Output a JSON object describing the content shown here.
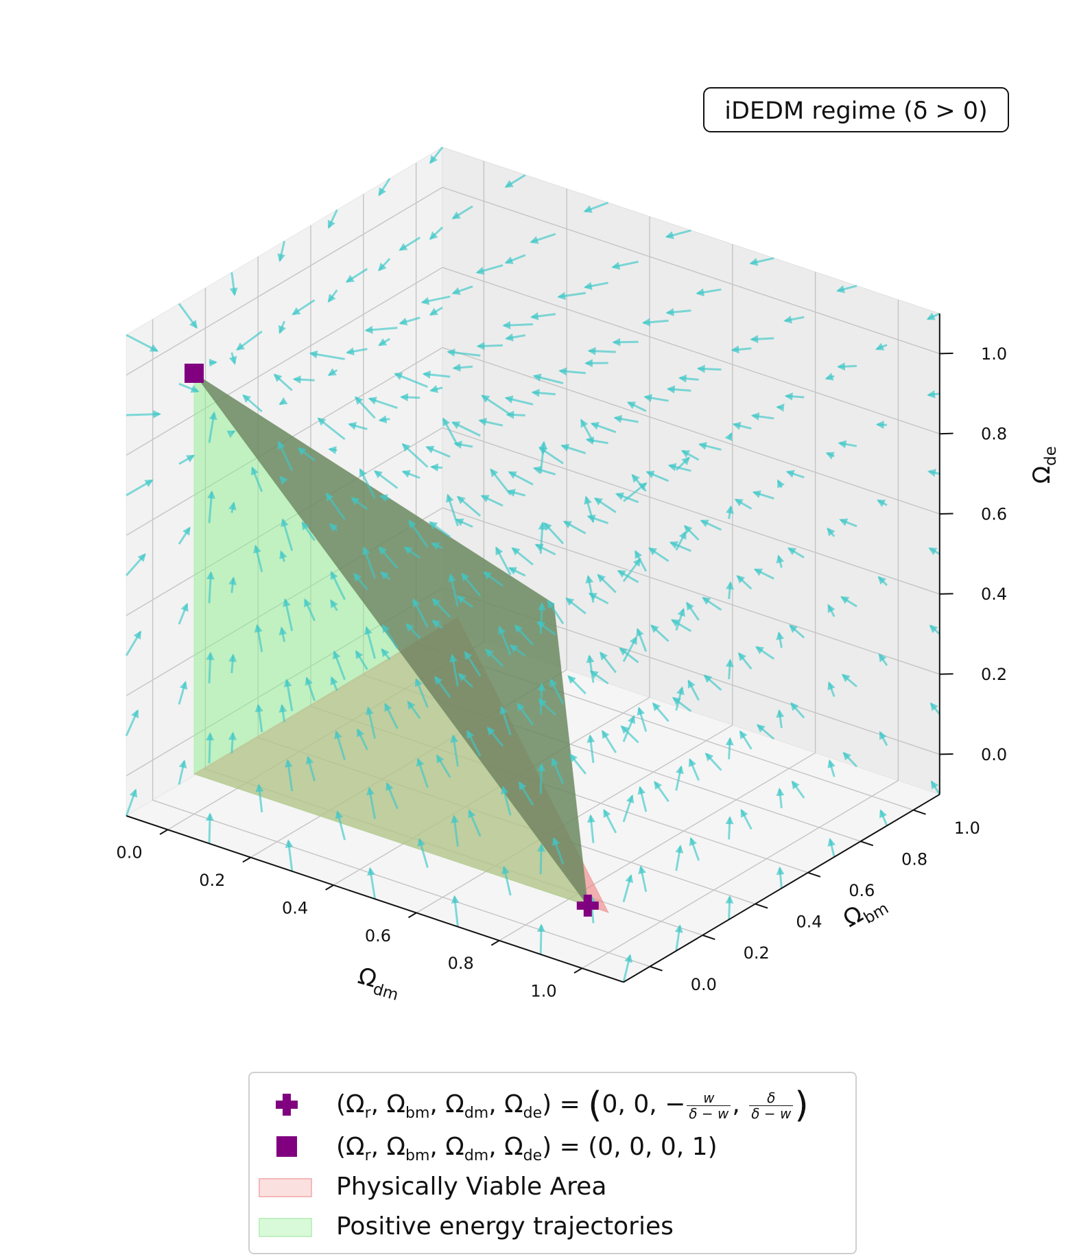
{
  "chart_data": {
    "type": "3d-quiver",
    "annotation": "iDEDM regime (δ > 0)",
    "axes": {
      "x": {
        "label_main": "Ω",
        "label_sub": "dm",
        "ticks": [
          "0.0",
          "0.2",
          "0.4",
          "0.6",
          "0.8",
          "1.0"
        ],
        "range": [
          -0.1,
          1.1
        ]
      },
      "y": {
        "label_main": "Ω",
        "label_sub": "bm",
        "ticks": [
          "0.0",
          "0.2",
          "0.4",
          "0.6",
          "0.8",
          "1.0"
        ],
        "range": [
          -0.1,
          1.1
        ]
      },
      "z": {
        "label_main": "Ω",
        "label_sub": "de",
        "ticks": [
          "0.0",
          "0.2",
          "0.4",
          "0.6",
          "0.8",
          "1.0"
        ],
        "range": [
          -0.1,
          1.1
        ]
      }
    },
    "grid": true,
    "quiver": {
      "color": "#3ec8c8",
      "grid_step": 0.1,
      "grid_from": -0.1,
      "grid_to": 1.1
    },
    "points": [
      {
        "name": "plus-point",
        "marker": "plus",
        "color": "#800080",
        "coords": {
          "dm": 0.95,
          "bm": 0.0,
          "de": 0.0
        }
      },
      {
        "name": "square-point",
        "marker": "square",
        "color": "#800080",
        "coords": {
          "dm": 0.0,
          "bm": 0.0,
          "de": 1.0
        }
      }
    ],
    "surfaces": [
      {
        "name": "physically-viable-area",
        "color": "#f08080",
        "opacity": 0.6,
        "vertices": [
          [
            0,
            0,
            0
          ],
          [
            1,
            0,
            0
          ],
          [
            0,
            1,
            0
          ]
        ]
      },
      {
        "name": "positive-energy-trajectories",
        "color": "#90ee90",
        "opacity": 0.5,
        "vertices": [
          [
            0,
            0,
            1
          ],
          [
            0,
            0,
            0
          ],
          [
            0.95,
            0,
            0
          ]
        ]
      },
      {
        "name": "positive-energy-shell",
        "color": "#6b8a60",
        "opacity": 0.85,
        "vertices": [
          [
            0,
            0,
            1
          ],
          [
            0.95,
            0,
            0
          ],
          [
            0.55,
            0.5,
            0.42
          ]
        ]
      }
    ]
  },
  "legend": {
    "location": "lower-center",
    "items": [
      {
        "marker": "plus",
        "color": "#800080",
        "text_prefix": "(Ω",
        "r": "r",
        "bm": "bm",
        "dm": "dm",
        "de": "de",
        "eq": ") = ",
        "value_text": "0, 0, −",
        "w": "w",
        "delta_minus_w": "δ − w",
        "delta": "δ"
      },
      {
        "marker": "square",
        "color": "#800080",
        "value_text": "(0, 0, 0, 1)"
      },
      {
        "marker": "patch",
        "color": "#f8c8c8",
        "label": "Physically Viable Area"
      },
      {
        "marker": "patch",
        "color": "#c8f5c8",
        "label": "Positive energy trajectories"
      }
    ]
  }
}
